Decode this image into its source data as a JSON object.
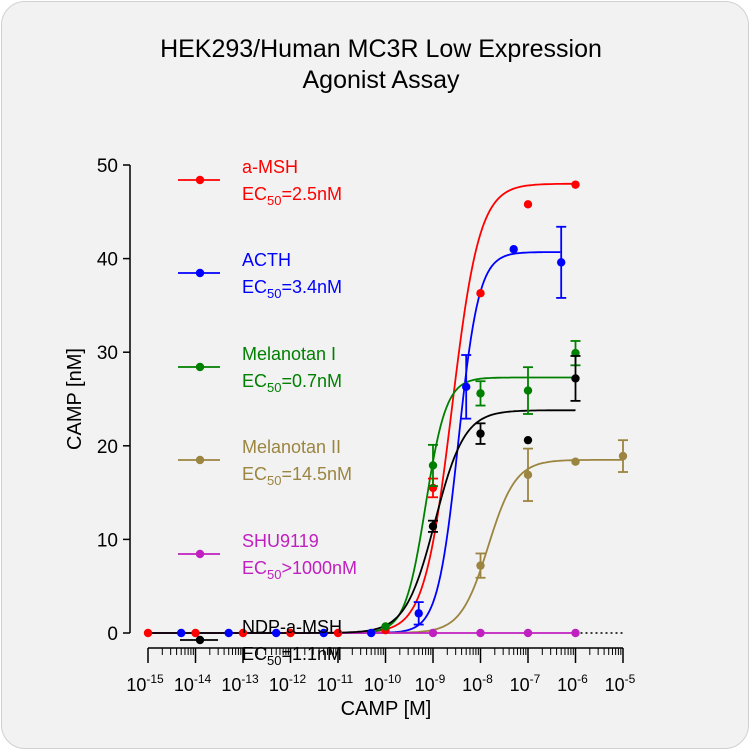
{
  "chart_data": {
    "type": "scatter",
    "title": "HEK293/Human MC3R Low Expression Agonist Assay",
    "title_lines": [
      "HEK293/Human MC3R Low Expression",
      "Agonist Assay"
    ],
    "xlabel": "CAMP [M]",
    "ylabel": "CAMP [nM]",
    "x_scale": "log",
    "xlim": [
      1e-15,
      1e-05
    ],
    "ylim": [
      0,
      50
    ],
    "x_ticks": [
      {
        "value": 1e-15,
        "base": "10",
        "exp": "-15"
      },
      {
        "value": 1e-14,
        "base": "10",
        "exp": "-14"
      },
      {
        "value": 1e-13,
        "base": "10",
        "exp": "-13"
      },
      {
        "value": 1e-12,
        "base": "10",
        "exp": "-12"
      },
      {
        "value": 1e-11,
        "base": "10",
        "exp": "-11"
      },
      {
        "value": 1e-10,
        "base": "10",
        "exp": "-10"
      },
      {
        "value": 1e-09,
        "base": "10",
        "exp": "-9"
      },
      {
        "value": 1e-08,
        "base": "10",
        "exp": "-8"
      },
      {
        "value": 1e-07,
        "base": "10",
        "exp": "-7"
      },
      {
        "value": 1e-06,
        "base": "10",
        "exp": "-6"
      },
      {
        "value": 1e-05,
        "base": "10",
        "exp": "-5"
      }
    ],
    "y_ticks": [
      "0",
      "10",
      "20",
      "30",
      "40",
      "50"
    ],
    "grid": false,
    "legend_position": "top-left",
    "series": [
      {
        "name": "a-MSH",
        "ec50_label": "EC",
        "ec50_sub": "50",
        "ec50_value": "=2.5nM",
        "color": "#ff0000",
        "x": [
          1e-15,
          1e-14,
          1e-13,
          1e-12,
          1e-11,
          1e-10,
          1e-09,
          1e-08,
          1e-07,
          1e-06
        ],
        "y": [
          0,
          0,
          0,
          0,
          0,
          0.3,
          15.5,
          36.3,
          45.8,
          47.9
        ],
        "err": [
          0,
          0,
          0,
          0,
          0,
          0,
          1.0,
          0,
          0,
          0
        ],
        "fit": {
          "bottom": 0,
          "top": 48.0,
          "ec50": 2.5e-09,
          "hill": 1.5
        }
      },
      {
        "name": "ACTH",
        "ec50_label": "EC",
        "ec50_sub": "50",
        "ec50_value": "=3.4nM",
        "color": "#0000ff",
        "x": [
          5e-15,
          5e-14,
          5e-13,
          5e-12,
          5e-11,
          5e-10,
          5e-09,
          5e-08,
          5e-07
        ],
        "y": [
          0,
          0,
          0,
          0,
          0,
          2.1,
          26.3,
          41.0,
          39.6
        ],
        "err": [
          0,
          0,
          0,
          0,
          0,
          1.2,
          3.4,
          0,
          3.8
        ],
        "fit": {
          "bottom": 0,
          "top": 40.7,
          "ec50": 3.4e-09,
          "hill": 2.0
        }
      },
      {
        "name": "Melanotan I",
        "ec50_label": "EC",
        "ec50_sub": "50",
        "ec50_value": "=0.7nM",
        "color": "#008000",
        "x": [
          1e-10,
          1e-09,
          1e-08,
          1e-07,
          1e-06
        ],
        "y": [
          0.7,
          17.9,
          25.6,
          25.9,
          29.9
        ],
        "err": [
          0,
          2.2,
          1.3,
          2.5,
          1.3
        ],
        "fit": {
          "bottom": 0,
          "top": 27.3,
          "ec50": 7e-10,
          "hill": 2.0
        }
      },
      {
        "name": "Melanotan II",
        "ec50_label": "EC",
        "ec50_sub": "50",
        "ec50_value": "=14.5nM",
        "color": "#9b8540",
        "x": [
          1e-08,
          1e-07,
          1e-06,
          1e-05
        ],
        "y": [
          7.2,
          16.9,
          18.3,
          18.9
        ],
        "err": [
          1.3,
          2.8,
          0,
          1.7
        ],
        "fit": {
          "bottom": 0,
          "top": 18.5,
          "ec50": 1.45e-08,
          "hill": 1.5
        }
      },
      {
        "name": "SHU9119",
        "ec50_label": "EC",
        "ec50_sub": "50",
        "ec50_value": ">1000nM",
        "color": "#c020c0",
        "x": [
          1e-09,
          1e-08,
          1e-07,
          1e-06
        ],
        "y": [
          0,
          0,
          0,
          0
        ],
        "err": [
          0,
          0,
          0,
          0
        ],
        "fit": {
          "flat": 0,
          "from": 1e-10,
          "to": 1e-06
        }
      },
      {
        "name": "NDP-a-MSH",
        "ec50_label": "EC",
        "ec50_sub": "50",
        "ec50_value": "=1.1nM",
        "color": "#000000",
        "x": [
          1e-09,
          1e-08,
          1e-07,
          1e-06
        ],
        "y": [
          11.4,
          21.3,
          20.6,
          27.2
        ],
        "err": [
          0.6,
          1.1,
          0,
          2.4
        ],
        "fit": {
          "bottom": 0,
          "top": 23.8,
          "ec50": 1.1e-09,
          "hill": 1.4
        }
      }
    ]
  }
}
